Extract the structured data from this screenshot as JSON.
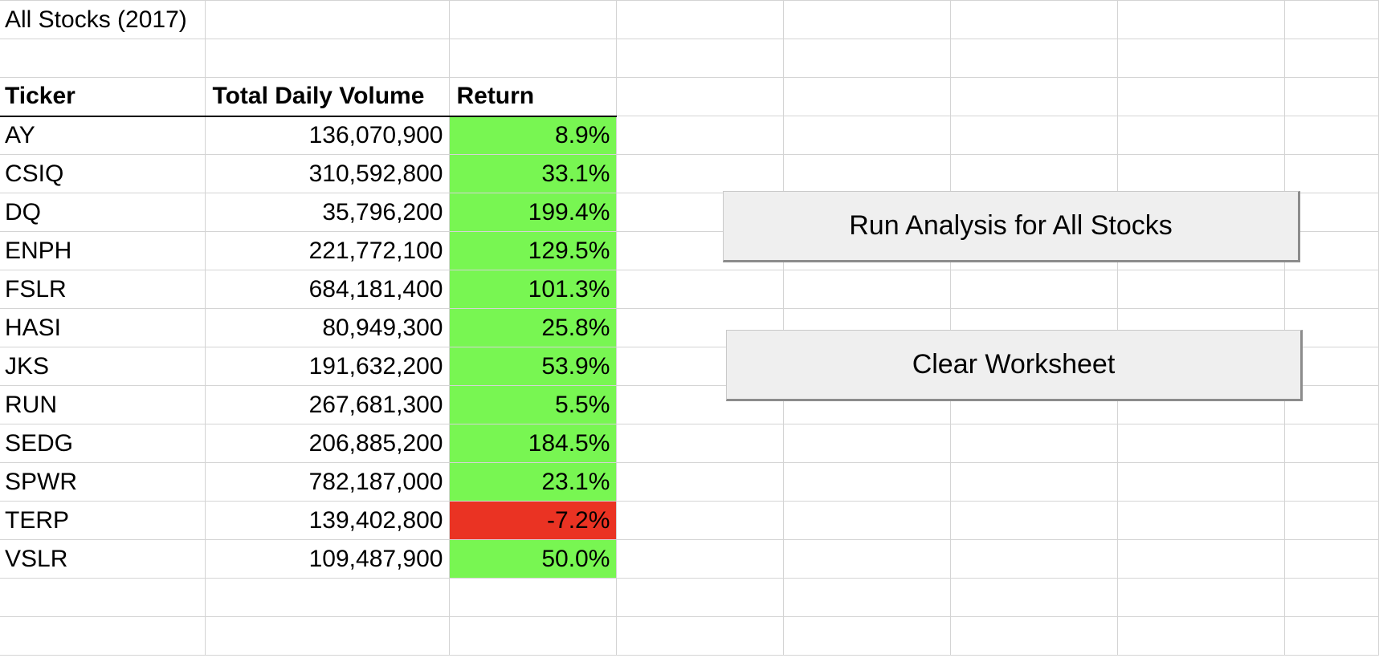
{
  "sheet": {
    "title": "All Stocks (2017)",
    "headers": {
      "ticker": "Ticker",
      "volume": "Total Daily Volume",
      "return": "Return"
    },
    "rows": [
      {
        "ticker": "AY",
        "volume": "136,070,900",
        "return": "8.9%",
        "status": "up"
      },
      {
        "ticker": "CSIQ",
        "volume": "310,592,800",
        "return": "33.1%",
        "status": "up"
      },
      {
        "ticker": "DQ",
        "volume": "35,796,200",
        "return": "199.4%",
        "status": "up"
      },
      {
        "ticker": "ENPH",
        "volume": "221,772,100",
        "return": "129.5%",
        "status": "up"
      },
      {
        "ticker": "FSLR",
        "volume": "684,181,400",
        "return": "101.3%",
        "status": "up"
      },
      {
        "ticker": "HASI",
        "volume": "80,949,300",
        "return": "25.8%",
        "status": "up"
      },
      {
        "ticker": "JKS",
        "volume": "191,632,200",
        "return": "53.9%",
        "status": "up"
      },
      {
        "ticker": "RUN",
        "volume": "267,681,300",
        "return": "5.5%",
        "status": "up"
      },
      {
        "ticker": "SEDG",
        "volume": "206,885,200",
        "return": "184.5%",
        "status": "up"
      },
      {
        "ticker": "SPWR",
        "volume": "782,187,000",
        "return": "23.1%",
        "status": "up"
      },
      {
        "ticker": "TERP",
        "volume": "139,402,800",
        "return": "-7.2%",
        "status": "down"
      },
      {
        "ticker": "VSLR",
        "volume": "109,487,900",
        "return": "50.0%",
        "status": "up"
      }
    ]
  },
  "buttons": {
    "run_label": "Run Analysis for All Stocks",
    "clear_label": "Clear Worksheet"
  },
  "colors": {
    "positive_fill": "#78f652",
    "negative_fill": "#ea3323",
    "gridline": "#d4d4d4",
    "button_face": "#efefef"
  }
}
